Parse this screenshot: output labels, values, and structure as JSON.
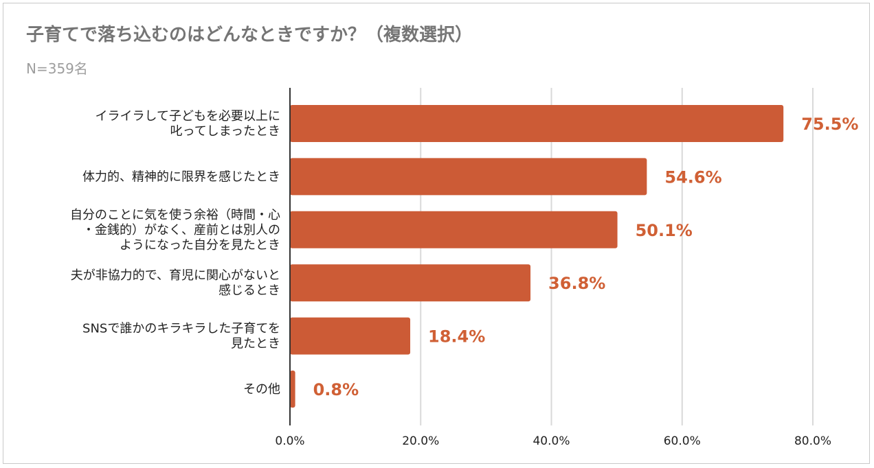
{
  "chart_data": {
    "type": "bar",
    "orientation": "horizontal",
    "title": "子育てで落ち込むのはどんなときですか？（複数選択）",
    "subtitle": "N=359名",
    "categories": [
      [
        "イライラして子どもを必要以上に",
        "叱ってしまったとき"
      ],
      [
        "体力的、精神的に限界を感じたとき"
      ],
      [
        "自分のことに気を使う余裕（時間・心",
        "・金銭的）がなく、産前とは別人の",
        "ようになった自分を見たとき"
      ],
      [
        "夫が非協力的で、育児に関心がないと",
        "感じるとき"
      ],
      [
        "SNSで誰かのキラキラした子育てを",
        "見たとき"
      ],
      [
        "その他"
      ]
    ],
    "values": [
      75.5,
      54.6,
      50.1,
      36.8,
      18.4,
      0.8
    ],
    "value_labels": [
      "75.5%",
      "54.6%",
      "50.1%",
      "36.8%",
      "18.4%",
      "0.8%"
    ],
    "xlim": [
      0,
      80
    ],
    "x_ticks": [
      0,
      20,
      40,
      60,
      80
    ],
    "x_tick_labels": [
      "0.0%",
      "20.0%",
      "40.0%",
      "60.0%",
      "80.0%"
    ],
    "grid": true,
    "legend": "none",
    "bar_color": "#cc5b36",
    "label_color": "#d06035"
  }
}
